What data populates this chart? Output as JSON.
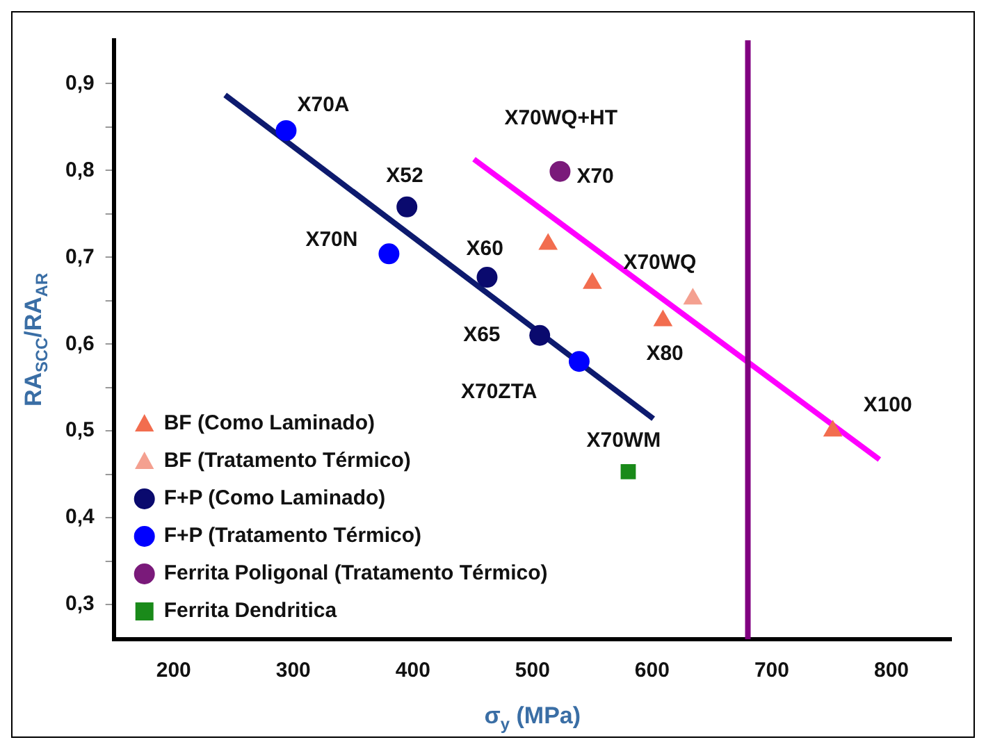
{
  "chart_data": {
    "type": "scatter",
    "xlabel": "σ$_{y}$ (MPa)",
    "ylabel": "RA$_{SCC}$/RA$_{AR}$",
    "xlim": [
      150,
      850
    ],
    "xticks": [
      200,
      300,
      400,
      500,
      600,
      700,
      800
    ],
    "ylim": [
      0.26,
      0.95
    ],
    "yticks": [
      {
        "value": 0.3,
        "label": "0,3"
      },
      {
        "value": 0.35,
        "label": null
      },
      {
        "value": 0.4,
        "label": "0,4"
      },
      {
        "value": 0.45,
        "label": null
      },
      {
        "value": 0.5,
        "label": "0,5"
      },
      {
        "value": 0.55,
        "label": null
      },
      {
        "value": 0.6,
        "label": "0,6"
      },
      {
        "value": 0.65,
        "label": null
      },
      {
        "value": 0.7,
        "label": "0,7"
      },
      {
        "value": 0.75,
        "label": null
      },
      {
        "value": 0.8,
        "label": "0,8"
      },
      {
        "value": 0.85,
        "label": null
      },
      {
        "value": 0.9,
        "label": "0,9"
      }
    ],
    "grid": false,
    "legend": "bottom left",
    "series": [
      {
        "name": "BF (Como Laminado)",
        "color": "#f26d4f",
        "marker": "triangle",
        "x": [
          513,
          550,
          609,
          751
        ],
        "values": [
          0.715,
          0.67,
          0.627,
          0.5
        ]
      },
      {
        "name": "BF (Tratamento Térmico)",
        "color": "#f4a090",
        "marker": "triangle",
        "x": [
          634
        ],
        "values": [
          0.652
        ]
      },
      {
        "name": "F+P (Como Laminado)",
        "color": "#0a0a6e",
        "marker": "circle",
        "x": [
          395,
          462,
          506
        ],
        "values": [
          0.758,
          0.677,
          0.61
        ]
      },
      {
        "name": "F+P (Tratamento Térmico)",
        "color": "#0000ff",
        "marker": "circle",
        "x": [
          294,
          380,
          539
        ],
        "values": [
          0.846,
          0.704,
          0.58
        ]
      },
      {
        "name": "Ferrita Poligonal (Tratamento Térmico)",
        "color": "#7a1a7a",
        "marker": "circle",
        "x": [
          523
        ],
        "values": [
          0.799
        ]
      },
      {
        "name": "Ferrita Dendritica",
        "color": "#1a8a1a",
        "marker": "square",
        "x": [
          580
        ],
        "values": [
          0.453
        ]
      },
      {
        "type": "line",
        "color": "#0d1a6e",
        "marker": "none",
        "x": [
          243,
          601
        ],
        "values": [
          0.887,
          0.514
        ]
      },
      {
        "type": "line",
        "color": "#ff00ff",
        "marker": "none",
        "x": [
          451,
          790
        ],
        "values": [
          0.813,
          0.467
        ]
      }
    ],
    "ref_lines": [
      {
        "axis": "x",
        "value": 680,
        "color": "#800080"
      }
    ],
    "annotations": [
      {
        "text": "X70A",
        "x": 294,
        "y": 0.846
      },
      {
        "text": "X52",
        "x": 395,
        "y": 0.758
      },
      {
        "text": "X70N",
        "x": 380,
        "y": 0.704
      },
      {
        "text": "X60",
        "x": 462,
        "y": 0.677
      },
      {
        "text": "X65",
        "x": 506,
        "y": 0.61
      },
      {
        "text": "X70ZTA",
        "x": 539,
        "y": 0.58
      },
      {
        "text": "X70WQ+HT",
        "x": 523,
        "y": 0.799
      },
      {
        "text": "X70",
        "x": 523,
        "y": 0.799
      },
      {
        "text": "X70WQ",
        "x": 634,
        "y": 0.652
      },
      {
        "text": "X80",
        "x": 609,
        "y": 0.627
      },
      {
        "text": "X100",
        "x": 751,
        "y": 0.5
      },
      {
        "text": "X70WM",
        "x": 580,
        "y": 0.453
      }
    ]
  }
}
